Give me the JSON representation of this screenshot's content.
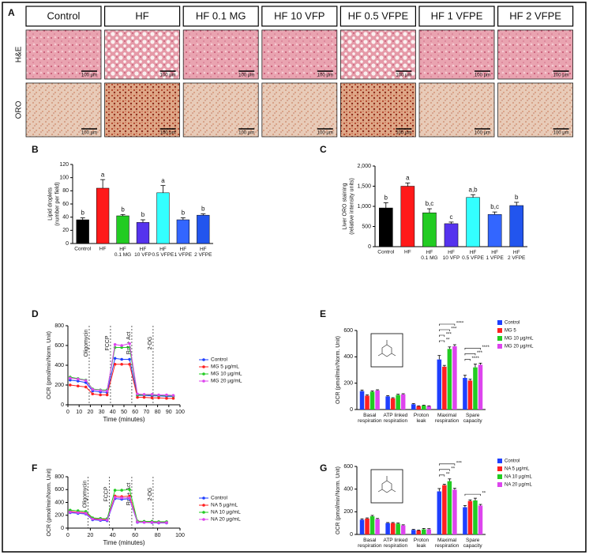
{
  "chart_data": [
    {
      "type": "imagegrid",
      "panel": "A",
      "columns": [
        "Control",
        "HF",
        "HF 0.1 MG",
        "HF 10 VFP",
        "HF 0.5 VFPE",
        "HF 1 VFPE",
        "HF 2 VFPE"
      ],
      "rows": [
        "H&E",
        "ORO"
      ],
      "scale_bar": "100 μm"
    },
    {
      "type": "bar",
      "panel": "B",
      "ylabel": "Lipid droplets\n(number per field)",
      "categories": [
        "Control",
        "HF",
        "HF\n0.1 MG",
        "HF\n10 VFP",
        "HF\n0.5 VFPE",
        "HF\n1 VFPE",
        "HF\n2 VFPE"
      ],
      "values": [
        36,
        84,
        42,
        32,
        77,
        36,
        43
      ],
      "errors": [
        3,
        13,
        2,
        4,
        11,
        3,
        2
      ],
      "annotations": [
        "b",
        "a",
        "b",
        "b",
        "a",
        "b",
        "b"
      ],
      "colors": [
        "#000000",
        "#ff1a1a",
        "#22cc22",
        "#5533ee",
        "#33ffff",
        "#3366ff",
        "#2255ee"
      ],
      "ylim": [
        0,
        120
      ],
      "yticks": [
        0,
        20,
        40,
        60,
        80,
        100,
        120
      ]
    },
    {
      "type": "bar",
      "panel": "C",
      "ylabel": "Liver ORO staining\n(relative intensity units)",
      "categories": [
        "Control",
        "HF",
        "HF\n0.1 MG",
        "HF\n10 VFP",
        "HF\n0.5 VFPE",
        "HF\n1 VFPE",
        "HF\n2 VFPE"
      ],
      "values": [
        960,
        1500,
        840,
        570,
        1220,
        800,
        1020
      ],
      "errors": [
        130,
        80,
        100,
        40,
        70,
        60,
        80
      ],
      "annotations": [
        "b",
        "a",
        "b,c",
        "c",
        "a,b",
        "b,c",
        "b"
      ],
      "colors": [
        "#000000",
        "#ff1a1a",
        "#22cc22",
        "#5533ee",
        "#33ffff",
        "#3366ff",
        "#2255ee"
      ],
      "ylim": [
        0,
        2000
      ],
      "yticks": [
        0,
        500,
        {
          "value": 1000,
          "label": "1,000"
        },
        {
          "value": 1500,
          "label": "1,500"
        },
        {
          "value": 2000,
          "label": "2,000"
        }
      ]
    },
    {
      "type": "line",
      "panel": "D",
      "xlabel": "Time (minutes)",
      "ylabel": "OCR (pmol/min/Norm. Unit)",
      "x": [
        2,
        9,
        16,
        22,
        29,
        35,
        42,
        48,
        55,
        62,
        68,
        75,
        81,
        88,
        94
      ],
      "series": [
        {
          "name": "Control",
          "color": "#1f3fff",
          "values": [
            250,
            240,
            225,
            140,
            130,
            125,
            470,
            460,
            460,
            95,
            95,
            90,
            90,
            85,
            85
          ]
        },
        {
          "name": "MG 5 µg/mL",
          "color": "#ff2020",
          "values": [
            200,
            190,
            180,
            110,
            100,
            100,
            410,
            410,
            410,
            75,
            75,
            70,
            70,
            65,
            65
          ]
        },
        {
          "name": "MG 10 µg/mL",
          "color": "#22cc22",
          "values": [
            280,
            265,
            250,
            160,
            150,
            150,
            580,
            580,
            580,
            100,
            100,
            100,
            95,
            95,
            90
          ]
        },
        {
          "name": "MG 20 µg/mL",
          "color": "#dd44ee",
          "values": [
            270,
            260,
            245,
            155,
            145,
            140,
            610,
            600,
            620,
            110,
            105,
            105,
            100,
            100,
            95
          ]
        }
      ],
      "injections": [
        {
          "x": 19,
          "label": "Oligomycin"
        },
        {
          "x": 38,
          "label": "FCCP"
        },
        {
          "x": 57,
          "label": "Rot + Act"
        },
        {
          "x": 76,
          "label": "2-DG"
        }
      ],
      "xlim": [
        0,
        100
      ],
      "xticks": [
        0,
        10,
        20,
        30,
        40,
        50,
        60,
        70,
        80,
        90,
        100
      ],
      "ylim": [
        0,
        800
      ],
      "yticks": [
        0,
        200,
        400,
        600,
        800
      ]
    },
    {
      "type": "bar",
      "panel": "E",
      "ylabel": "OCR (pmol/min/Norm. Unit)",
      "categories": [
        "Basal\nrespiration",
        "ATP linked\nrespiration",
        "Proton\nleak",
        "Maximal\nrespiration",
        "Spare\ncapacity"
      ],
      "series": [
        {
          "name": "Control",
          "color": "#1f3fff",
          "values": [
            140,
            100,
            40,
            380,
            240
          ],
          "errors": [
            8,
            6,
            5,
            30,
            20
          ]
        },
        {
          "name": "MG 5",
          "color": "#ff2020",
          "values": [
            105,
            85,
            25,
            325,
            220
          ],
          "errors": [
            6,
            5,
            3,
            10,
            10
          ]
        },
        {
          "name": "MG 10 µg/mL",
          "color": "#22cc22",
          "values": [
            135,
            110,
            30,
            460,
            320
          ],
          "errors": [
            6,
            6,
            3,
            15,
            25
          ]
        },
        {
          "name": "MG 20 µg/mL",
          "color": "#dd44ee",
          "values": [
            145,
            115,
            25,
            480,
            340
          ],
          "errors": [
            5,
            5,
            3,
            12,
            12
          ]
        }
      ],
      "significance": [
        [],
        [],
        [],
        [
          "****",
          "***",
          "***",
          "**"
        ],
        [
          "****",
          "***",
          "****"
        ]
      ],
      "ylim": [
        0,
        600
      ],
      "yticks": [
        0,
        200,
        400,
        600
      ]
    },
    {
      "type": "line",
      "panel": "F",
      "xlabel": "Time (minutes)",
      "ylabel": "OCR (pmol/min/Norm. Unit)",
      "x": [
        2,
        9,
        16,
        22,
        29,
        35,
        42,
        48,
        55,
        62,
        68,
        75,
        81,
        88
      ],
      "series": [
        {
          "name": "Control",
          "color": "#1f3fff",
          "values": [
            240,
            230,
            220,
            130,
            120,
            115,
            460,
            450,
            455,
            90,
            90,
            85,
            80,
            80
          ]
        },
        {
          "name": "NA 5 µg/mL",
          "color": "#ff2020",
          "values": [
            260,
            250,
            240,
            150,
            140,
            135,
            500,
            490,
            500,
            100,
            95,
            95,
            90,
            90
          ]
        },
        {
          "name": "NA 10 µg/mL",
          "color": "#22cc22",
          "values": [
            280,
            270,
            260,
            160,
            150,
            145,
            590,
            590,
            600,
            110,
            105,
            105,
            100,
            100
          ]
        },
        {
          "name": "NA 20 µg/mL",
          "color": "#dd44ee",
          "values": [
            250,
            240,
            230,
            140,
            130,
            125,
            480,
            470,
            470,
            95,
            90,
            90,
            85,
            85
          ]
        }
      ],
      "injections": [
        {
          "x": 18,
          "label": "Oligomycin"
        },
        {
          "x": 37,
          "label": "FCCP"
        },
        {
          "x": 57,
          "label": "Rot + Act"
        },
        {
          "x": 76,
          "label": "2-DG"
        }
      ],
      "xlim": [
        0,
        100
      ],
      "xticks": [
        0,
        20,
        40,
        60,
        80,
        100
      ],
      "ylim": [
        0,
        800
      ],
      "yticks": [
        0,
        200,
        400,
        600,
        800
      ]
    },
    {
      "type": "bar",
      "panel": "G",
      "ylabel": "OCR (pmol/min/Norm. Unit)",
      "categories": [
        "Basal\nrespiration",
        "ATP linked\nrespiration",
        "Proton\nleak",
        "Maximal\nrespiration",
        "Spare\ncapacity"
      ],
      "series": [
        {
          "name": "Control",
          "color": "#1f3fff",
          "values": [
            130,
            100,
            40,
            380,
            240
          ],
          "errors": [
            8,
            5,
            5,
            25,
            15
          ]
        },
        {
          "name": "NA 5 µg/mL",
          "color": "#ff2020",
          "values": [
            140,
            100,
            35,
            435,
            295
          ],
          "errors": [
            6,
            5,
            4,
            8,
            10
          ]
        },
        {
          "name": "NA 10 µg/mL",
          "color": "#22cc22",
          "values": [
            160,
            95,
            45,
            470,
            300
          ],
          "errors": [
            8,
            6,
            8,
            20,
            20
          ]
        },
        {
          "name": "NA 20 µg/mL",
          "color": "#dd44ee",
          "values": [
            135,
            80,
            45,
            395,
            255
          ],
          "errors": [
            6,
            5,
            6,
            12,
            10
          ]
        }
      ],
      "significance": [
        [],
        [],
        [],
        [
          "***",
          "**",
          "**"
        ],
        [
          "**"
        ]
      ],
      "ylim": [
        0,
        600
      ],
      "yticks": [
        0,
        200,
        400,
        600
      ]
    }
  ]
}
